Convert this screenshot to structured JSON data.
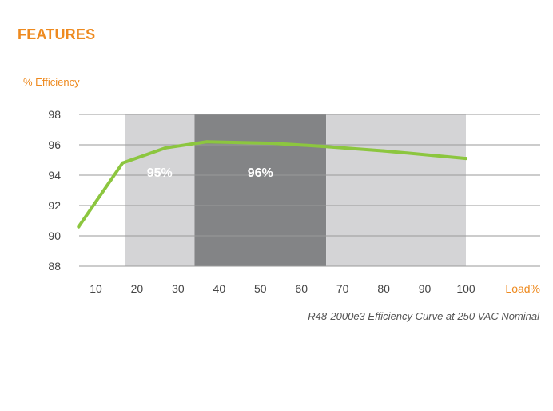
{
  "header": {
    "title": "FEATURES"
  },
  "chart_data": {
    "type": "line",
    "title": "",
    "ylabel": "% Efficiency",
    "xlabel": "Load%",
    "caption": "R48-2000e3 Efficiency Curve at 250 VAC Nominal",
    "x_ticks": [
      10,
      20,
      30,
      40,
      50,
      60,
      70,
      80,
      90,
      100
    ],
    "y_ticks": [
      88,
      90,
      92,
      94,
      96,
      98
    ],
    "xlim": [
      5,
      115
    ],
    "ylim": [
      88,
      98
    ],
    "grid": true,
    "bands": [
      {
        "label": "95%",
        "x_start": 17,
        "x_end": 34,
        "color": "#d4d4d6"
      },
      {
        "label": "96%",
        "x_start": 34,
        "x_end": 66,
        "color": "#838486"
      },
      {
        "label": "",
        "x_start": 66,
        "x_end": 100,
        "color": "#d4d4d6"
      }
    ],
    "series": [
      {
        "color": "#8cc63f",
        "x": [
          5.8,
          16.5,
          27,
          37,
          53,
          65,
          80,
          100
        ],
        "y": [
          90.6,
          94.8,
          95.8,
          96.2,
          96.1,
          95.9,
          95.6,
          95.1
        ]
      }
    ]
  }
}
